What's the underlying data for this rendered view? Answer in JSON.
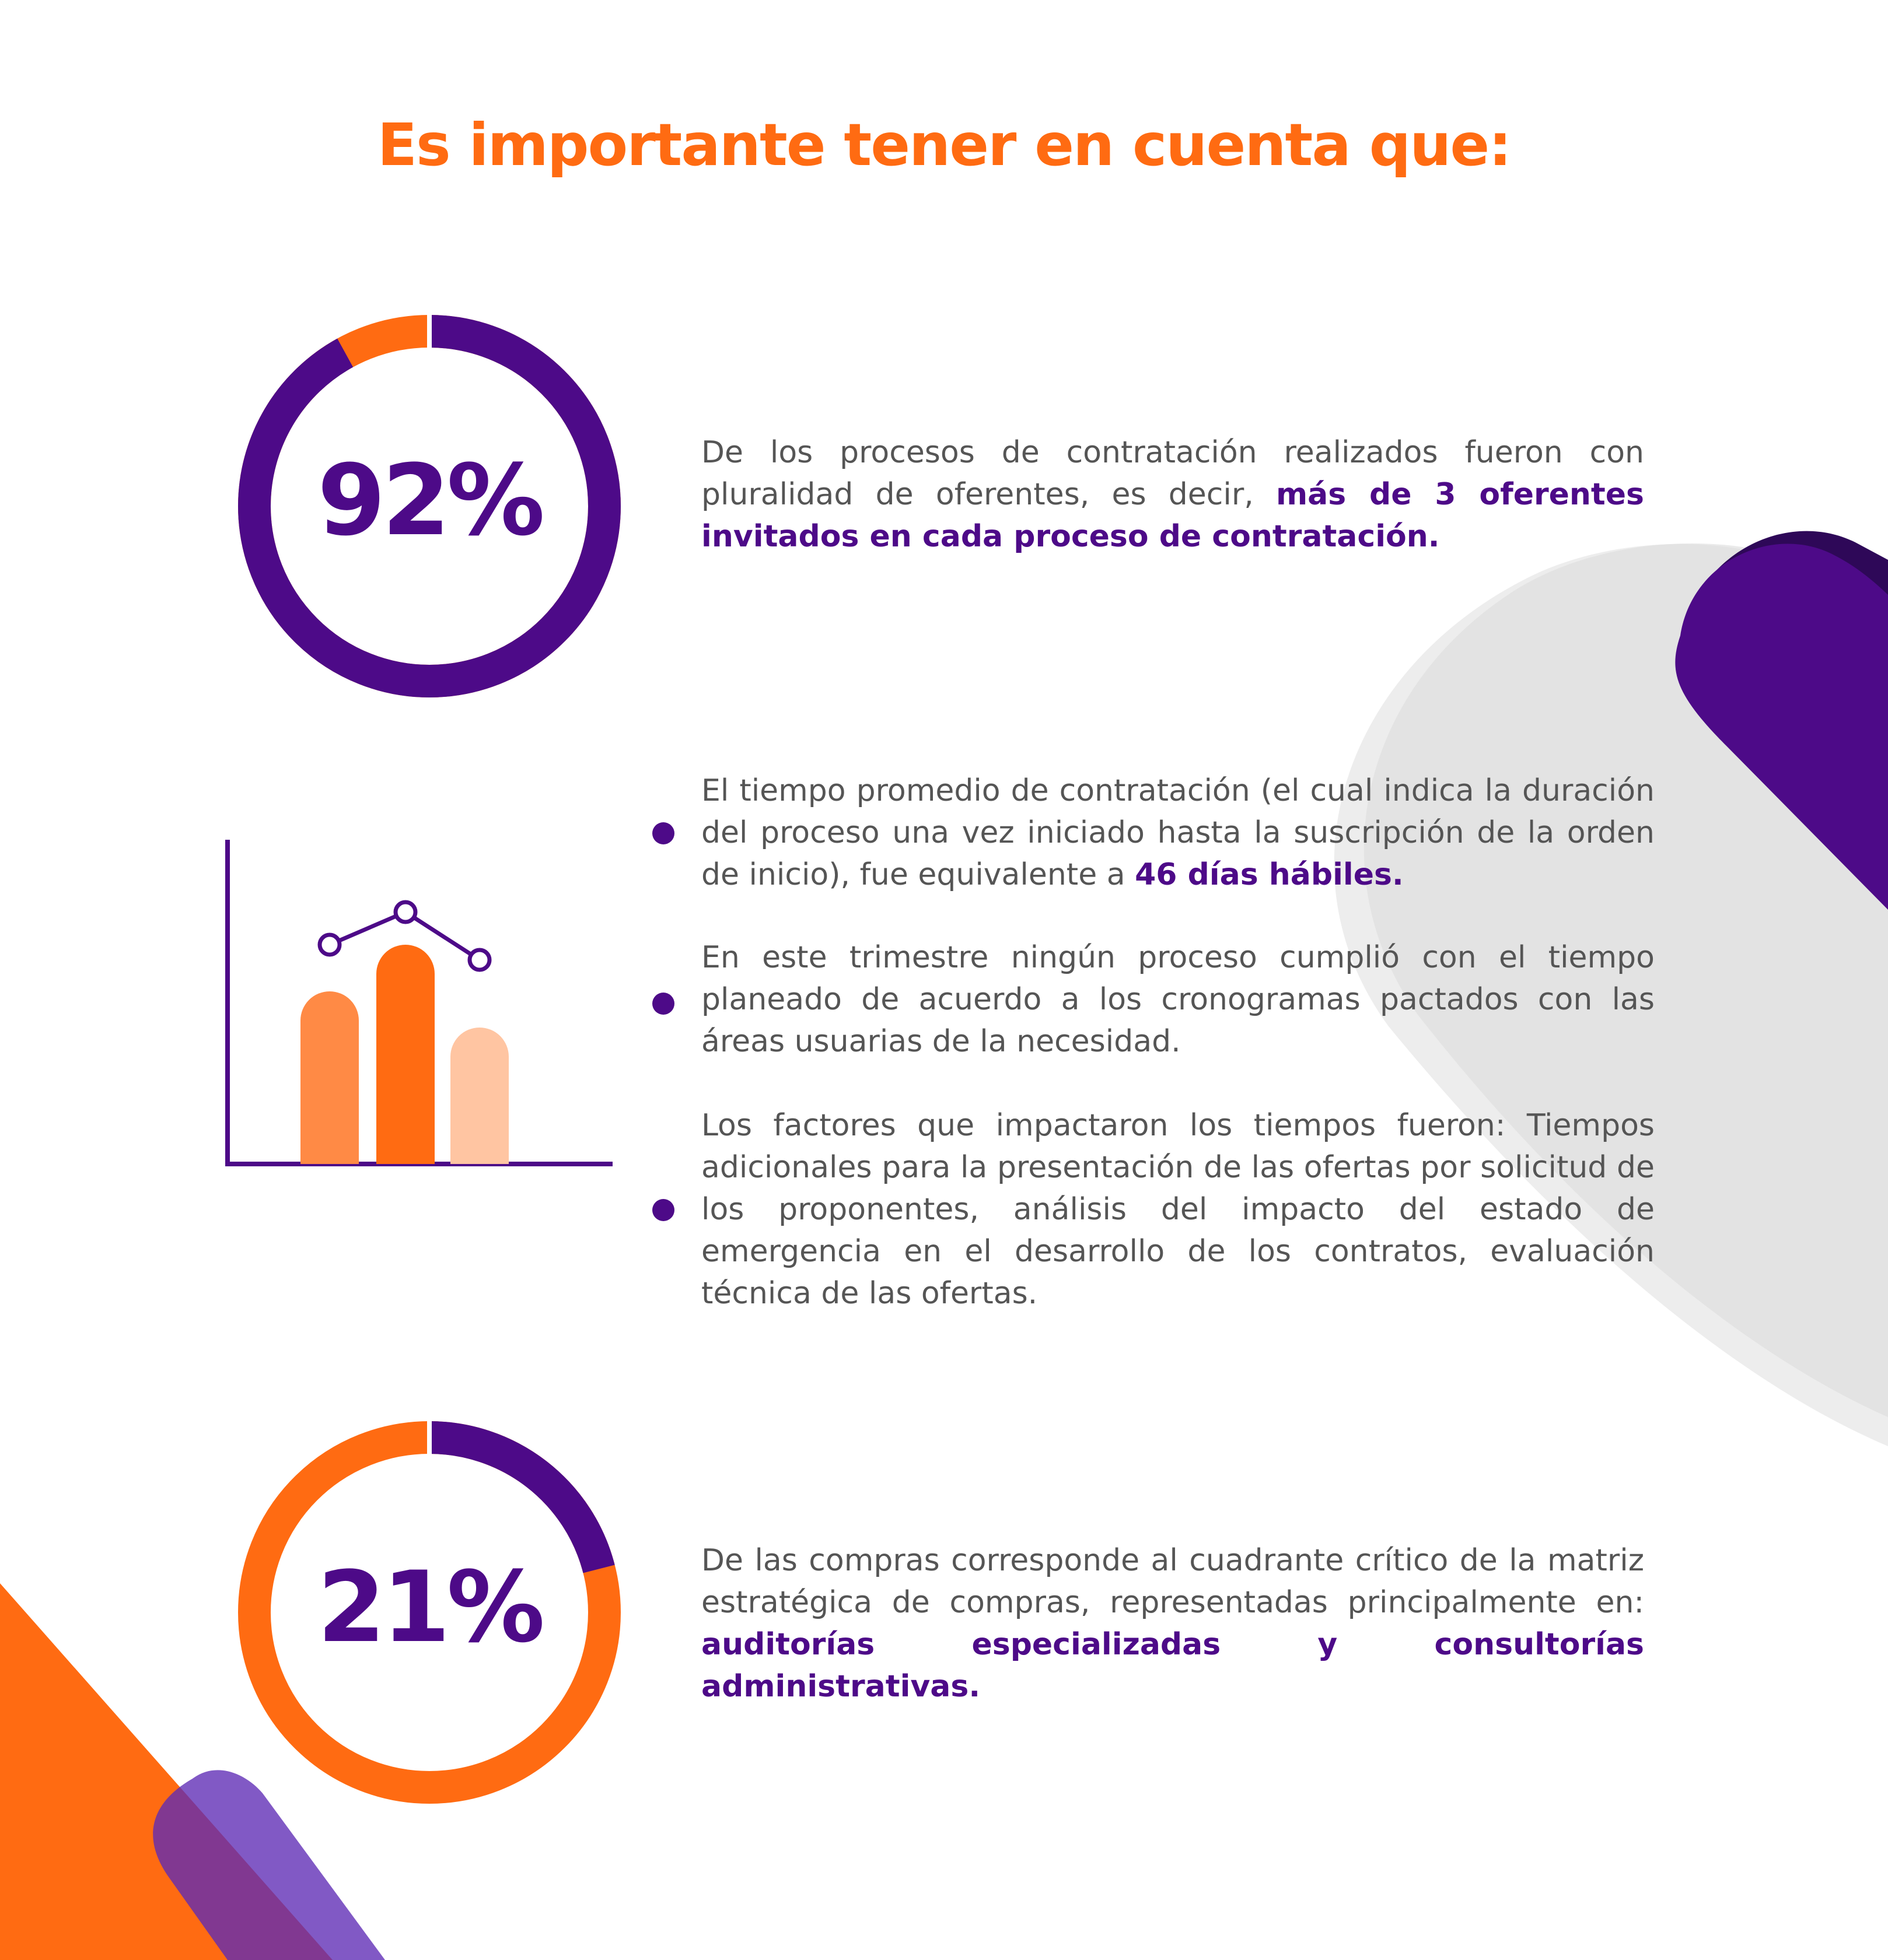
{
  "title": "Es importante tener en cuenta que:",
  "colors": {
    "accent": "#FF6B12",
    "brand": "#4D0A88",
    "text": "#555555"
  },
  "stat1": {
    "value": "92%",
    "fill_fraction": 0.92,
    "text_plain": "De los procesos de contratación realizados fueron con pluralidad de oferentes, es decir,",
    "text_highlight": "más de 3 oferentes invitados en cada proceso de contratación."
  },
  "bullets": [
    {
      "text_plain": "El tiempo promedio de contratación (el cual indica la duración del proceso una vez iniciado hasta la suscripción de la orden de inicio), fue equivalente a",
      "text_highlight": "46 días hábiles."
    },
    {
      "text_plain": "En este trimestre ningún proceso cumplió con el tiempo planeado de acuerdo a los cronogramas pactados con las áreas usuarias de la necesidad."
    },
    {
      "text_plain": "Los factores que impactaron los tiempos fueron: Tiempos adicionales para la presentación de las ofertas por solicitud de los proponentes, análisis del impacto del estado de emergencia en el desarrollo de los contratos, evaluación técnica de las ofertas."
    }
  ],
  "stat2": {
    "value": "21%",
    "fill_fraction": 0.21,
    "text_plain": "De las compras corresponde al cuadrante crítico de la matriz estratégica de compras,  representadas principalmente en:",
    "text_highlight": "auditorías especializadas y consultorías administrativas."
  },
  "icons": [
    "bar-chart-icon"
  ]
}
